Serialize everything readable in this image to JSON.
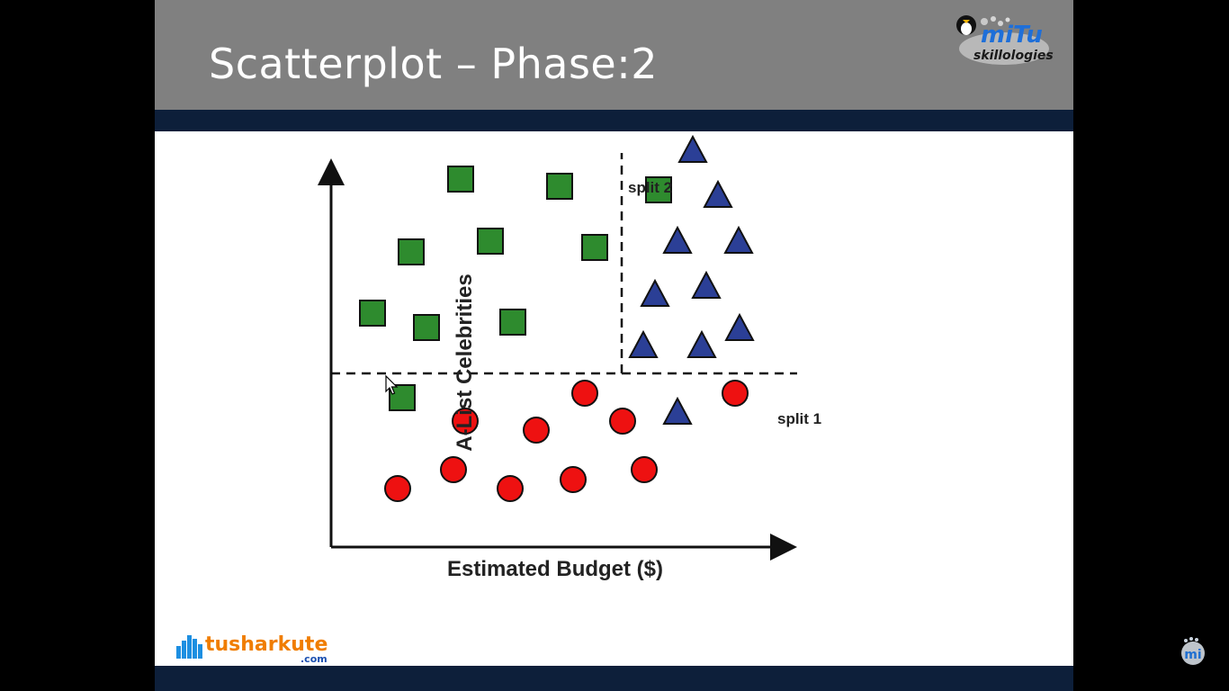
{
  "slide": {
    "title": "Scatterplot – Phase:2",
    "brand_logo": {
      "main": "miTu",
      "sub": "skillologies"
    },
    "site_logo": {
      "main": "tusharkute",
      "sub": ".com"
    },
    "corner_badge": {
      "text": "mi"
    }
  },
  "colors": {
    "header_bg": "#808080",
    "band": "#0d1f3a",
    "square": "#2e8b2e",
    "triangle": "#2b3f96",
    "circle": "#ee1111"
  },
  "chart_data": {
    "type": "scatter",
    "xlabel": "Estimated Budget ($)",
    "ylabel": "A-List Celebrities",
    "xlim": [
      0,
      100
    ],
    "ylim": [
      0,
      100
    ],
    "grid": false,
    "axis_ticks": false,
    "splits": [
      {
        "label": "split 1",
        "orientation": "horizontal",
        "value": 38.6,
        "x_range": [
          0,
          100
        ]
      },
      {
        "label": "split 2",
        "orientation": "vertical",
        "value": 64.6,
        "y_range": [
          38.6,
          90
        ]
      }
    ],
    "series": [
      {
        "marker": "square",
        "color": "#2e8b2e",
        "points": [
          [
            28.8,
            81.8
          ],
          [
            50.8,
            80.2
          ],
          [
            72.8,
            79.4
          ],
          [
            17.8,
            65.6
          ],
          [
            35.4,
            68.0
          ],
          [
            58.6,
            66.6
          ],
          [
            9.2,
            52.0
          ],
          [
            21.2,
            48.8
          ],
          [
            40.4,
            50.0
          ],
          [
            15.8,
            33.2
          ]
        ]
      },
      {
        "marker": "triangle",
        "color": "#2b3f96",
        "points": [
          [
            80.4,
            88.2
          ],
          [
            86.0,
            78.2
          ],
          [
            77.0,
            68.0
          ],
          [
            90.6,
            68.0
          ],
          [
            72.0,
            56.2
          ],
          [
            83.4,
            58.0
          ],
          [
            69.4,
            44.8
          ],
          [
            82.4,
            44.8
          ],
          [
            90.8,
            48.6
          ],
          [
            77.0,
            30.0
          ]
        ]
      },
      {
        "marker": "circle",
        "color": "#ee1111",
        "points": [
          [
            56.4,
            34.2
          ],
          [
            89.8,
            34.2
          ],
          [
            29.8,
            28.0
          ],
          [
            45.6,
            26.0
          ],
          [
            64.8,
            28.0
          ],
          [
            14.8,
            13.0
          ],
          [
            27.2,
            17.2
          ],
          [
            39.8,
            13.0
          ],
          [
            53.8,
            15.0
          ],
          [
            69.6,
            17.2
          ]
        ]
      }
    ]
  }
}
